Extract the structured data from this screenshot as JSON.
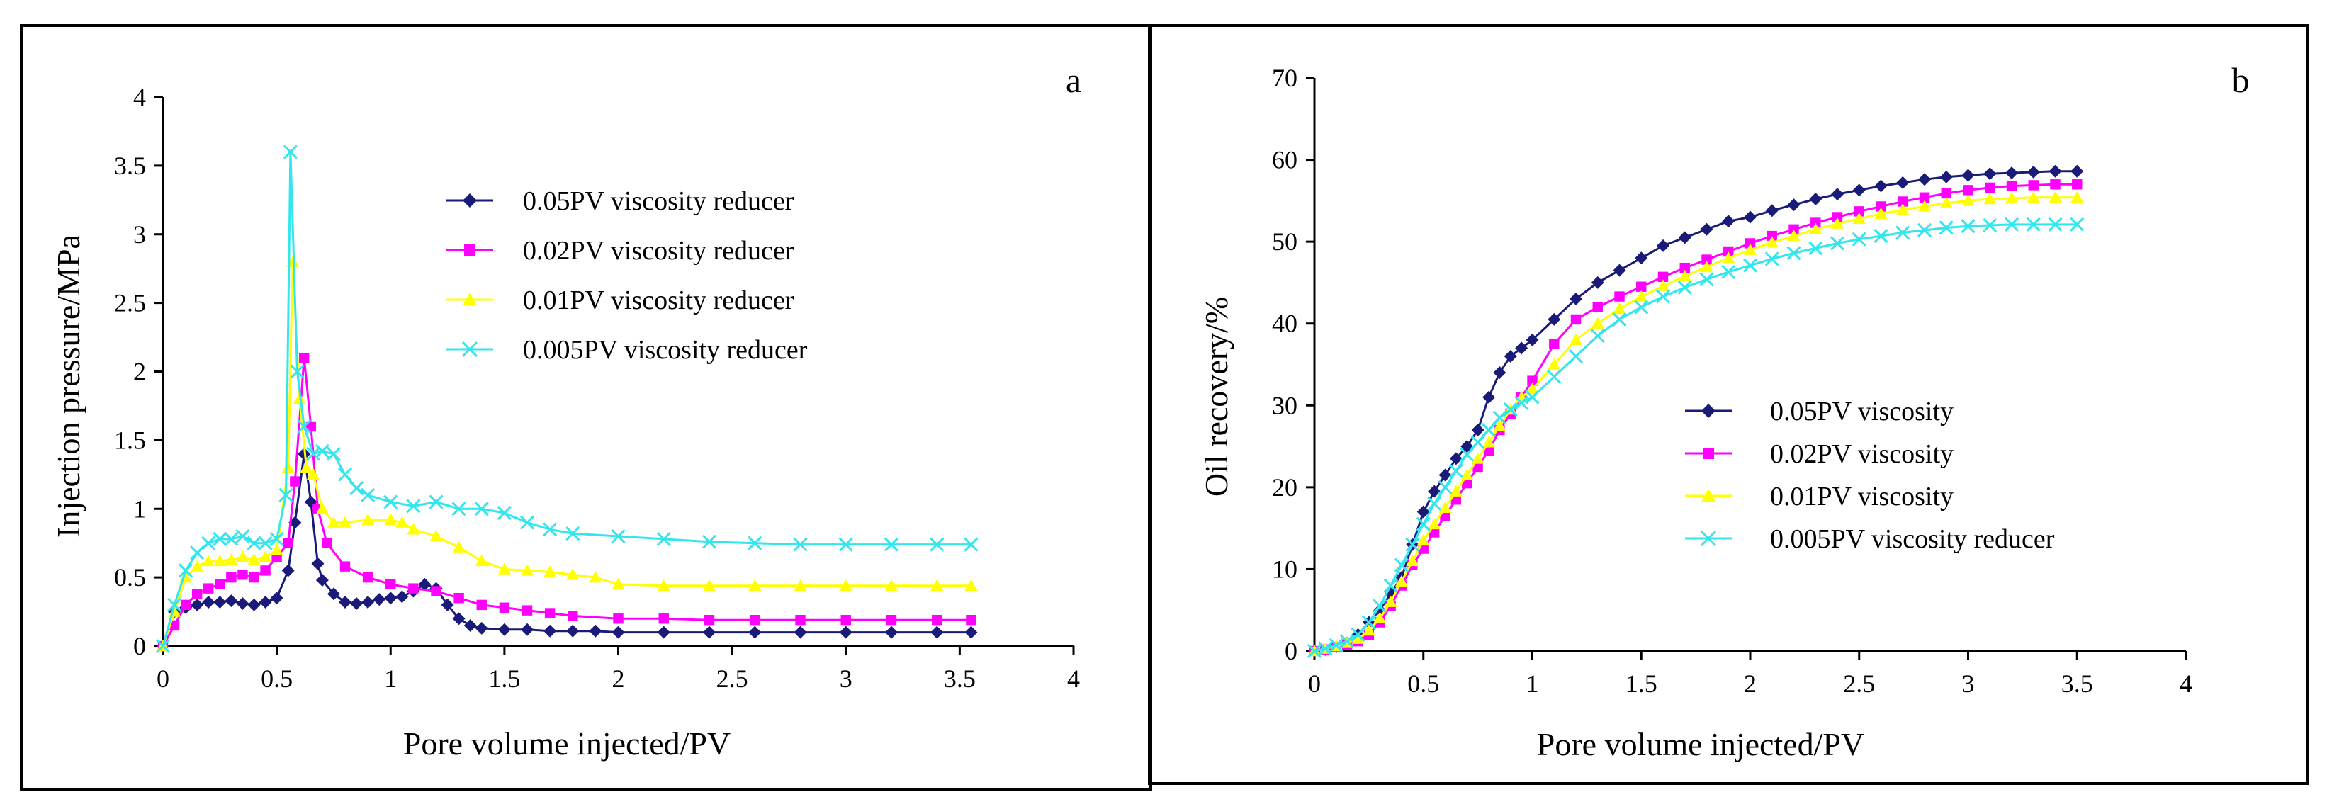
{
  "colors": {
    "s005": "#1a1a78",
    "s002": "#ff00ff",
    "s001": "#ffff00",
    "s0005": "#33e6ee"
  },
  "chart_data": [
    {
      "type": "line",
      "panel_label": "a",
      "xlabel": "Pore volume injected/PV",
      "ylabel": "Injection pressure/MPa",
      "xlim": [
        0,
        4
      ],
      "ylim": [
        0,
        4
      ],
      "xticks": [
        "0",
        "0.5",
        "1",
        "1.5",
        "2",
        "2.5",
        "3",
        "3.5",
        "4"
      ],
      "yticks": [
        "0",
        "0.5",
        "1",
        "1.5",
        "2",
        "2.5",
        "3",
        "3.5",
        "4"
      ],
      "legend_position": "upper-center",
      "series": [
        {
          "name": "0.05PV viscosity reducer",
          "marker": "diamond",
          "color_key": "s005",
          "x": [
            0,
            0.05,
            0.1,
            0.15,
            0.2,
            0.25,
            0.3,
            0.35,
            0.4,
            0.45,
            0.5,
            0.55,
            0.58,
            0.62,
            0.65,
            0.68,
            0.7,
            0.75,
            0.8,
            0.85,
            0.9,
            0.95,
            1.0,
            1.05,
            1.1,
            1.15,
            1.2,
            1.25,
            1.3,
            1.35,
            1.4,
            1.5,
            1.6,
            1.7,
            1.8,
            1.9,
            2.0,
            2.2,
            2.4,
            2.6,
            2.8,
            3.0,
            3.2,
            3.4,
            3.55
          ],
          "y": [
            0,
            0.25,
            0.28,
            0.3,
            0.32,
            0.32,
            0.33,
            0.31,
            0.3,
            0.32,
            0.35,
            0.55,
            0.9,
            1.4,
            1.05,
            0.6,
            0.48,
            0.38,
            0.32,
            0.31,
            0.32,
            0.34,
            0.35,
            0.36,
            0.4,
            0.45,
            0.42,
            0.3,
            0.2,
            0.15,
            0.13,
            0.12,
            0.12,
            0.11,
            0.11,
            0.11,
            0.1,
            0.1,
            0.1,
            0.1,
            0.1,
            0.1,
            0.1,
            0.1,
            0.1
          ]
        },
        {
          "name": "0.02PV viscosity reducer",
          "marker": "square",
          "color_key": "s002",
          "x": [
            0,
            0.05,
            0.1,
            0.15,
            0.2,
            0.25,
            0.3,
            0.35,
            0.4,
            0.45,
            0.5,
            0.55,
            0.58,
            0.62,
            0.65,
            0.68,
            0.72,
            0.8,
            0.9,
            1.0,
            1.1,
            1.2,
            1.3,
            1.4,
            1.5,
            1.6,
            1.7,
            1.8,
            2.0,
            2.2,
            2.4,
            2.6,
            2.8,
            3.0,
            3.2,
            3.4,
            3.55
          ],
          "y": [
            0,
            0.15,
            0.3,
            0.38,
            0.42,
            0.45,
            0.5,
            0.52,
            0.5,
            0.55,
            0.65,
            0.75,
            1.2,
            2.1,
            1.6,
            1.0,
            0.75,
            0.58,
            0.5,
            0.45,
            0.42,
            0.4,
            0.35,
            0.3,
            0.28,
            0.26,
            0.24,
            0.22,
            0.2,
            0.2,
            0.19,
            0.19,
            0.19,
            0.19,
            0.19,
            0.19,
            0.19
          ]
        },
        {
          "name": "0.01PV viscosity reducer",
          "marker": "triangle",
          "color_key": "s001",
          "x": [
            0,
            0.05,
            0.1,
            0.15,
            0.2,
            0.25,
            0.3,
            0.35,
            0.4,
            0.45,
            0.5,
            0.55,
            0.57,
            0.6,
            0.63,
            0.66,
            0.7,
            0.75,
            0.8,
            0.9,
            1.0,
            1.05,
            1.1,
            1.2,
            1.3,
            1.4,
            1.5,
            1.6,
            1.7,
            1.8,
            1.9,
            2.0,
            2.2,
            2.4,
            2.6,
            2.8,
            3.0,
            3.2,
            3.4,
            3.55
          ],
          "y": [
            0,
            0.25,
            0.5,
            0.58,
            0.62,
            0.62,
            0.63,
            0.65,
            0.63,
            0.65,
            0.7,
            1.3,
            2.8,
            1.8,
            1.3,
            1.25,
            1.0,
            0.9,
            0.9,
            0.92,
            0.92,
            0.9,
            0.85,
            0.8,
            0.72,
            0.62,
            0.56,
            0.55,
            0.54,
            0.52,
            0.5,
            0.45,
            0.44,
            0.44,
            0.44,
            0.44,
            0.44,
            0.44,
            0.44,
            0.44
          ]
        },
        {
          "name": "0.005PV viscosity reducer",
          "marker": "x",
          "color_key": "s0005",
          "x": [
            0,
            0.05,
            0.1,
            0.15,
            0.2,
            0.25,
            0.3,
            0.35,
            0.4,
            0.45,
            0.5,
            0.54,
            0.56,
            0.59,
            0.62,
            0.66,
            0.7,
            0.75,
            0.8,
            0.85,
            0.9,
            1.0,
            1.1,
            1.2,
            1.3,
            1.4,
            1.5,
            1.6,
            1.7,
            1.8,
            2.0,
            2.2,
            2.4,
            2.6,
            2.8,
            3.0,
            3.2,
            3.4,
            3.55
          ],
          "y": [
            0,
            0.3,
            0.55,
            0.68,
            0.75,
            0.78,
            0.78,
            0.8,
            0.75,
            0.75,
            0.78,
            1.1,
            3.6,
            2.0,
            1.6,
            1.4,
            1.42,
            1.4,
            1.25,
            1.15,
            1.1,
            1.05,
            1.02,
            1.05,
            1.0,
            1.0,
            0.97,
            0.9,
            0.85,
            0.82,
            0.8,
            0.78,
            0.76,
            0.75,
            0.74,
            0.74,
            0.74,
            0.74,
            0.74
          ]
        }
      ]
    },
    {
      "type": "line",
      "panel_label": "b",
      "xlabel": "Pore volume injected/PV",
      "ylabel": "Oil recovery/%",
      "xlim": [
        0,
        4
      ],
      "ylim": [
        0,
        70
      ],
      "xticks": [
        "0",
        "0.5",
        "1",
        "1.5",
        "2",
        "2.5",
        "3",
        "3.5",
        "4"
      ],
      "yticks": [
        "0",
        "10",
        "20",
        "30",
        "40",
        "50",
        "60",
        "70"
      ],
      "legend_position": "center-right",
      "series": [
        {
          "name": "0.05PV viscosity",
          "marker": "diamond",
          "color_key": "s005",
          "x": [
            0,
            0.05,
            0.1,
            0.15,
            0.2,
            0.25,
            0.3,
            0.35,
            0.4,
            0.45,
            0.5,
            0.55,
            0.6,
            0.65,
            0.7,
            0.75,
            0.8,
            0.85,
            0.9,
            0.95,
            1.0,
            1.1,
            1.2,
            1.3,
            1.4,
            1.5,
            1.6,
            1.7,
            1.8,
            1.9,
            2.0,
            2.1,
            2.2,
            2.3,
            2.4,
            2.5,
            2.6,
            2.7,
            2.8,
            2.9,
            3.0,
            3.1,
            3.2,
            3.3,
            3.4,
            3.5
          ],
          "y": [
            0,
            0.2,
            0.5,
            1,
            2,
            3.5,
            5,
            7,
            9,
            13,
            17,
            19.5,
            21.5,
            23.5,
            25,
            27,
            31,
            34,
            36,
            37,
            38,
            40.5,
            43,
            45,
            46.5,
            48,
            49.5,
            50.5,
            51.5,
            52.5,
            53,
            53.8,
            54.5,
            55.2,
            55.8,
            56.3,
            56.8,
            57.2,
            57.6,
            57.9,
            58.1,
            58.3,
            58.4,
            58.5,
            58.6,
            58.6
          ]
        },
        {
          "name": "0.02PV viscosity",
          "marker": "square",
          "color_key": "s002",
          "x": [
            0,
            0.05,
            0.1,
            0.15,
            0.2,
            0.25,
            0.3,
            0.35,
            0.4,
            0.45,
            0.5,
            0.55,
            0.6,
            0.65,
            0.7,
            0.75,
            0.8,
            0.85,
            0.9,
            0.95,
            1.0,
            1.1,
            1.2,
            1.3,
            1.4,
            1.5,
            1.6,
            1.7,
            1.8,
            1.9,
            2.0,
            2.1,
            2.2,
            2.3,
            2.4,
            2.5,
            2.6,
            2.7,
            2.8,
            2.9,
            3.0,
            3.1,
            3.2,
            3.3,
            3.4,
            3.5
          ],
          "y": [
            0,
            0.2,
            0.5,
            0.8,
            1.2,
            2,
            3.5,
            5.5,
            8,
            10.5,
            12.5,
            14.5,
            16.5,
            18.5,
            20.5,
            22.5,
            24.5,
            27,
            29,
            31,
            33,
            37.5,
            40.5,
            42,
            43.3,
            44.5,
            45.7,
            46.8,
            47.8,
            48.8,
            49.8,
            50.7,
            51.5,
            52.3,
            53,
            53.7,
            54.3,
            54.9,
            55.4,
            55.9,
            56.3,
            56.6,
            56.8,
            56.9,
            57,
            57
          ]
        },
        {
          "name": "0.01PV viscosity",
          "marker": "triangle",
          "color_key": "s001",
          "x": [
            0,
            0.05,
            0.1,
            0.15,
            0.2,
            0.25,
            0.3,
            0.35,
            0.4,
            0.45,
            0.5,
            0.55,
            0.6,
            0.65,
            0.7,
            0.75,
            0.8,
            0.85,
            0.9,
            0.95,
            1.0,
            1.1,
            1.2,
            1.3,
            1.4,
            1.5,
            1.6,
            1.7,
            1.8,
            1.9,
            2.0,
            2.1,
            2.2,
            2.3,
            2.4,
            2.5,
            2.6,
            2.7,
            2.8,
            2.9,
            3.0,
            3.1,
            3.2,
            3.3,
            3.4,
            3.5
          ],
          "y": [
            0,
            0.3,
            0.6,
            1,
            1.5,
            2.5,
            4,
            6,
            8.5,
            11,
            13.5,
            15.5,
            17.5,
            19.5,
            21.5,
            23.5,
            25.5,
            27.5,
            29.5,
            31,
            32,
            35,
            38,
            40,
            41.8,
            43.3,
            44.6,
            45.8,
            46.9,
            48,
            49,
            49.9,
            50.7,
            51.5,
            52.2,
            52.8,
            53.4,
            53.9,
            54.3,
            54.7,
            55,
            55.2,
            55.3,
            55.4,
            55.4,
            55.4
          ]
        },
        {
          "name": "0.005PV viscosity reducer",
          "marker": "x",
          "color_key": "s0005",
          "x": [
            0,
            0.05,
            0.1,
            0.15,
            0.2,
            0.25,
            0.3,
            0.35,
            0.4,
            0.45,
            0.5,
            0.55,
            0.6,
            0.65,
            0.7,
            0.75,
            0.8,
            0.85,
            0.9,
            0.95,
            1.0,
            1.1,
            1.2,
            1.3,
            1.4,
            1.5,
            1.6,
            1.7,
            1.8,
            1.9,
            2.0,
            2.1,
            2.2,
            2.3,
            2.4,
            2.5,
            2.6,
            2.7,
            2.8,
            2.9,
            3.0,
            3.1,
            3.2,
            3.3,
            3.4,
            3.5
          ],
          "y": [
            0,
            0.3,
            0.7,
            1.2,
            2,
            3.5,
            5.5,
            8,
            10.5,
            13,
            15.5,
            18,
            20,
            22,
            24,
            25.5,
            27,
            28.5,
            29.5,
            30.3,
            31,
            33.5,
            36,
            38.5,
            40.5,
            42,
            43.3,
            44.4,
            45.4,
            46.3,
            47.1,
            47.9,
            48.6,
            49.2,
            49.8,
            50.3,
            50.7,
            51.1,
            51.4,
            51.7,
            51.9,
            52,
            52.1,
            52.1,
            52.1,
            52.1
          ]
        }
      ]
    }
  ]
}
